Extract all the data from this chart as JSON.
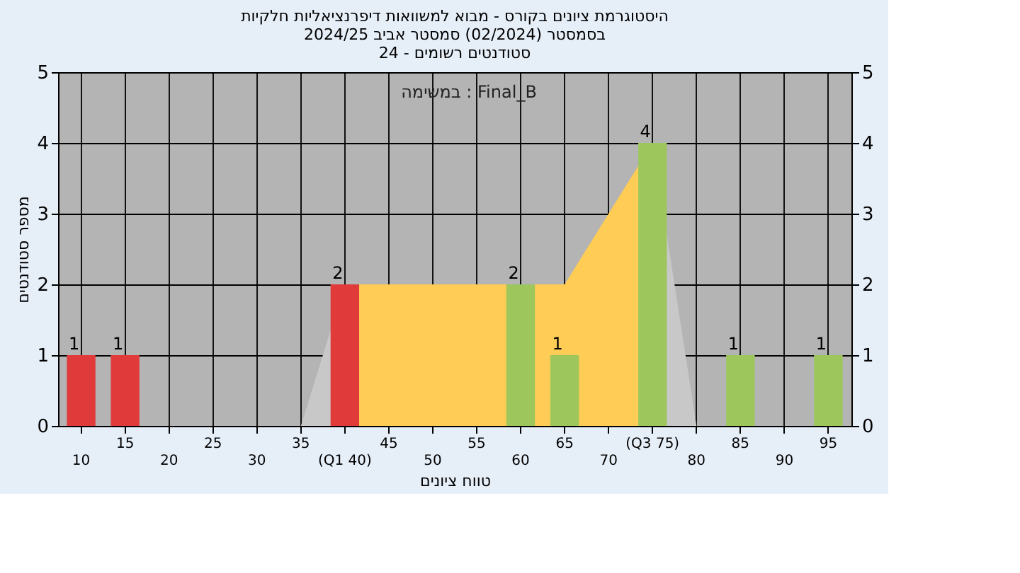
{
  "chart_data": {
    "type": "bar",
    "title": [
      "היסטוגרמת ציונים בקורס - מבוא למשוואות דיפרנציאליות חלקיות",
      "בסמסטר  (02/2024)  סמסטר אביב 2024/25",
      "סטודנטים רשומים - 24"
    ],
    "xlabel": "טווח ציונים",
    "ylabel": "מספר סטודנטים",
    "categories": [
      "10",
      "15",
      "20",
      "25",
      "30",
      "35",
      "(Q1 40)",
      "45",
      "50",
      "55",
      "60",
      "65",
      "70",
      "(Q3 75)",
      "80",
      "85",
      "90",
      "95"
    ],
    "series": [
      {
        "type": "area",
        "color": "#c8c8c8",
        "values": [
          null,
          null,
          null,
          null,
          null,
          0,
          2,
          null,
          null,
          null,
          null,
          null,
          null,
          4,
          0,
          null,
          null,
          null
        ]
      },
      {
        "type": "area",
        "color": "#ffcc55",
        "values": [
          null,
          null,
          null,
          null,
          null,
          null,
          2,
          2,
          2,
          2,
          2,
          2,
          3,
          4,
          null,
          null,
          null,
          null
        ]
      },
      {
        "colors": [
          "#e03a3a",
          "#e03a3a",
          "#e03a3a",
          "#e03a3a",
          "#e03a3a",
          "#e03a3a",
          "#e03a3a",
          "#9dc65c",
          "#9dc65c",
          "#9dc65c",
          "#9dc65c",
          "#9dc65c",
          "#9dc65c",
          "#9dc65c",
          "#9dc65c",
          "#9dc65c",
          "#9dc65c",
          "#9dc65c"
        ],
        "values": [
          1,
          1,
          0,
          0,
          0,
          0,
          2,
          0,
          0,
          0,
          2,
          1,
          0,
          4,
          0,
          1,
          0,
          1
        ],
        "value_labels": [
          "1",
          "1",
          null,
          null,
          null,
          null,
          "2",
          null,
          null,
          null,
          "2",
          "1",
          null,
          "4",
          null,
          "1",
          null,
          "1"
        ]
      }
    ],
    "ylim": [
      0,
      5
    ],
    "yticks": [
      0,
      1,
      2,
      3,
      4,
      5
    ],
    "y2lim": [
      0,
      5
    ],
    "y2ticks": [
      0,
      1,
      2,
      3,
      4,
      5
    ],
    "grid": true,
    "annotations": [
      "במשימה : Final_B"
    ]
  }
}
